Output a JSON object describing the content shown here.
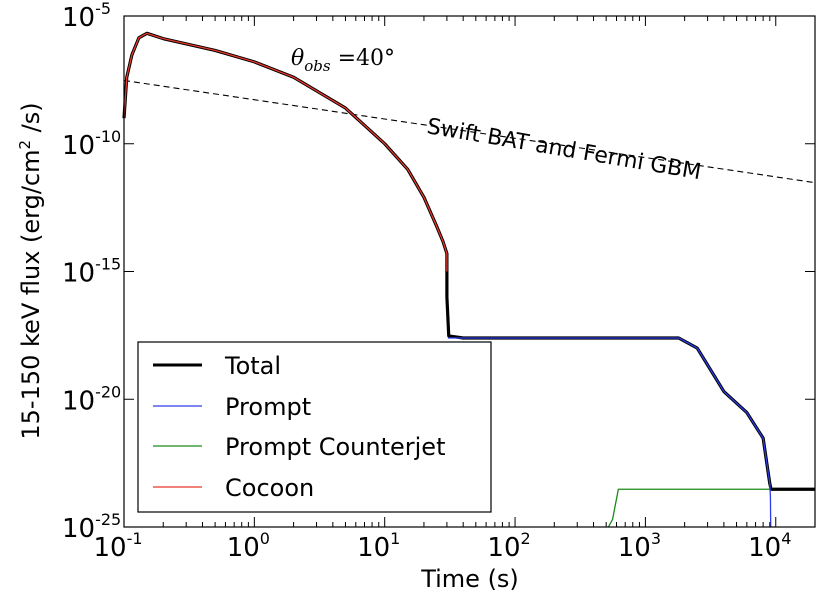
{
  "chart_data": {
    "type": "line",
    "title": "",
    "xlabel": "Time (s)",
    "ylabel": {
      "pre": "15-150 keV flux (erg/cm",
      "sup": "2",
      "post": " /s)"
    },
    "x_scale": "log",
    "y_scale": "log",
    "xlim": [
      0.1,
      20000
    ],
    "ylim": [
      1e-25,
      1e-05
    ],
    "x_ticks": [
      {
        "base": "10",
        "exp": "-1",
        "value": 0.1
      },
      {
        "base": "10",
        "exp": "0",
        "value": 1
      },
      {
        "base": "10",
        "exp": "1",
        "value": 10
      },
      {
        "base": "10",
        "exp": "2",
        "value": 100
      },
      {
        "base": "10",
        "exp": "3",
        "value": 1000
      },
      {
        "base": "10",
        "exp": "4",
        "value": 10000
      }
    ],
    "y_ticks": [
      {
        "base": "10",
        "exp": "-25",
        "value": 1e-25
      },
      {
        "base": "10",
        "exp": "-20",
        "value": 1e-20
      },
      {
        "base": "10",
        "exp": "-15",
        "value": 1e-15
      },
      {
        "base": "10",
        "exp": "-10",
        "value": 1e-10
      },
      {
        "base": "10",
        "exp": "-5",
        "value": 1e-05
      }
    ],
    "annotations": {
      "theta_label": "θ",
      "theta_sub": "obs",
      "theta_value": " =40°",
      "detector_label": "Swift BAT and Fermi GBM"
    },
    "legend_position": "lower-left",
    "series": [
      {
        "name": "Total",
        "color": "#000000",
        "points": [
          [
            0.1,
            1e-09
          ],
          [
            0.105,
            4e-08
          ],
          [
            0.115,
            3e-07
          ],
          [
            0.13,
            1.4e-06
          ],
          [
            0.15,
            2.1e-06
          ],
          [
            0.2,
            1.3e-06
          ],
          [
            0.5,
            4.5e-07
          ],
          [
            1,
            1.6e-07
          ],
          [
            2,
            4e-08
          ],
          [
            5,
            2.5e-09
          ],
          [
            10,
            1e-10
          ],
          [
            15,
            1e-11
          ],
          [
            20,
            8e-13
          ],
          [
            25,
            6e-14
          ],
          [
            28,
            1.5e-14
          ],
          [
            30,
            5e-15
          ],
          [
            30,
            1e-16
          ],
          [
            31,
            3e-18
          ],
          [
            40,
            2.5e-18
          ],
          [
            100,
            2.5e-18
          ],
          [
            1000,
            2.5e-18
          ],
          [
            1800,
            2.5e-18
          ],
          [
            2500,
            1e-18
          ],
          [
            4000,
            2e-20
          ],
          [
            6000,
            3e-21
          ],
          [
            8000,
            3e-22
          ],
          [
            9000,
            5e-24
          ],
          [
            9200,
            3e-24
          ],
          [
            20000,
            3e-24
          ]
        ]
      },
      {
        "name": "Prompt",
        "color": "#2c3de8",
        "points": [
          [
            30.5,
            2.5e-18
          ],
          [
            40,
            2.5e-18
          ],
          [
            100,
            2.5e-18
          ],
          [
            1000,
            2.5e-18
          ],
          [
            1800,
            2.5e-18
          ],
          [
            2500,
            1e-18
          ],
          [
            4000,
            2e-20
          ],
          [
            6000,
            3e-21
          ],
          [
            8000,
            3e-22
          ],
          [
            9000,
            5e-24
          ],
          [
            9100,
            1.5e-24
          ],
          [
            9150,
            1e-25
          ]
        ]
      },
      {
        "name": "Prompt Counterjet",
        "color": "#1a8a1a",
        "points": [
          [
            520,
            1e-25
          ],
          [
            560,
            2e-25
          ],
          [
            620,
            3e-24
          ],
          [
            700,
            3e-24
          ],
          [
            1000,
            3e-24
          ],
          [
            5000,
            3e-24
          ],
          [
            10000,
            3e-24
          ],
          [
            20000,
            3e-24
          ]
        ]
      },
      {
        "name": "Cocoon",
        "color": "#e8382b",
        "points": [
          [
            0.1,
            1e-09
          ],
          [
            0.105,
            4e-08
          ],
          [
            0.115,
            3e-07
          ],
          [
            0.13,
            1.4e-06
          ],
          [
            0.15,
            2.1e-06
          ],
          [
            0.2,
            1.3e-06
          ],
          [
            0.5,
            4.5e-07
          ],
          [
            1,
            1.6e-07
          ],
          [
            2,
            4e-08
          ],
          [
            5,
            2.5e-09
          ],
          [
            10,
            1e-10
          ],
          [
            15,
            1e-11
          ],
          [
            20,
            8e-13
          ],
          [
            25,
            6e-14
          ],
          [
            28,
            1.5e-14
          ],
          [
            30,
            5e-15
          ],
          [
            30,
            1e-15
          ]
        ]
      },
      {
        "name": "Swift BAT and Fermi GBM",
        "color": "#000000",
        "style": "dashed",
        "points": [
          [
            0.1,
            3e-08
          ],
          [
            20000,
            3e-12
          ]
        ]
      }
    ]
  }
}
